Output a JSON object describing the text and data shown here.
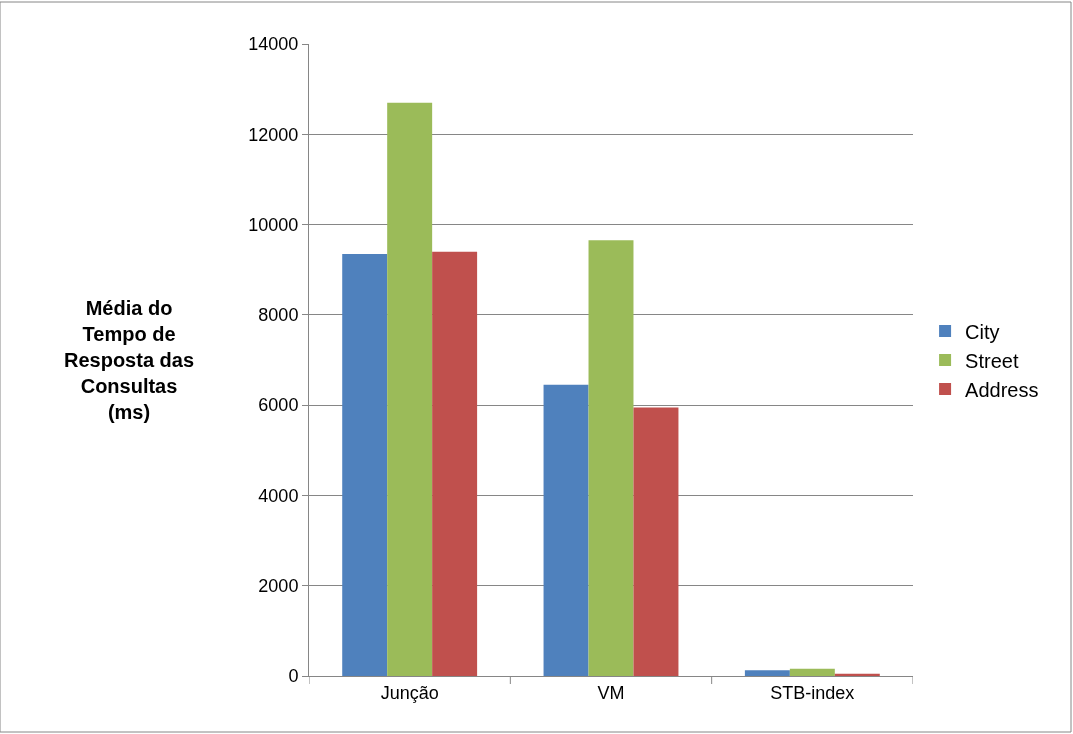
{
  "chart_data": {
    "type": "bar",
    "ylabel": "Média do Tempo de Resposta das Consultas (ms)",
    "categories": [
      "Junção",
      "VM",
      "STB-index"
    ],
    "series": [
      {
        "name": "City",
        "color": "#4f81bd",
        "values": [
          9350,
          6450,
          130
        ]
      },
      {
        "name": "Street",
        "color": "#9bbb59",
        "values": [
          12700,
          9650,
          160
        ]
      },
      {
        "name": "Address",
        "color": "#c0504d",
        "values": [
          9400,
          5950,
          50
        ]
      }
    ],
    "ylim": [
      0,
      14000
    ],
    "yticks": [
      0,
      2000,
      4000,
      6000,
      8000,
      10000,
      12000,
      14000
    ],
    "grid": "y",
    "legend": "right"
  }
}
